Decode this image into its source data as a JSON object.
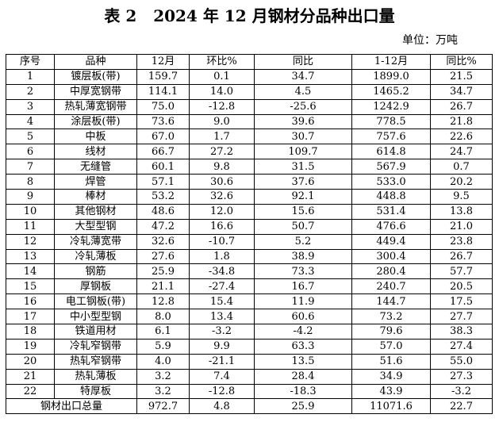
{
  "header": {
    "title": "表 2   2024 年 12 月钢材分品种出口量",
    "unit": "单位：万吨"
  },
  "table": {
    "columns": [
      "序号",
      "品种",
      "12月",
      "环比%",
      "同比",
      "1-12月",
      "同比%"
    ],
    "rows": [
      [
        "1",
        "镀层板(带)",
        "159.7",
        "0.1",
        "34.7",
        "1899.0",
        "21.5"
      ],
      [
        "2",
        "中厚宽钢带",
        "114.1",
        "14.0",
        "4.5",
        "1465.2",
        "34.7"
      ],
      [
        "3",
        "热轧薄宽钢带",
        "75.0",
        "-12.8",
        "-25.6",
        "1242.9",
        "26.7"
      ],
      [
        "4",
        "涂层板(带)",
        "73.6",
        "9.0",
        "39.6",
        "778.5",
        "21.8"
      ],
      [
        "5",
        "中板",
        "67.0",
        "1.7",
        "30.7",
        "757.6",
        "22.6"
      ],
      [
        "6",
        "线材",
        "66.7",
        "27.2",
        "109.7",
        "614.8",
        "24.7"
      ],
      [
        "7",
        "无缝管",
        "60.1",
        "9.8",
        "31.5",
        "567.9",
        "0.7"
      ],
      [
        "8",
        "焊管",
        "57.1",
        "30.6",
        "37.6",
        "533.0",
        "20.2"
      ],
      [
        "9",
        "棒材",
        "53.2",
        "32.6",
        "92.1",
        "448.8",
        "9.5"
      ],
      [
        "10",
        "其他钢材",
        "48.6",
        "12.0",
        "15.6",
        "531.4",
        "13.8"
      ],
      [
        "11",
        "大型型钢",
        "47.2",
        "16.6",
        "50.7",
        "476.6",
        "21.0"
      ],
      [
        "12",
        "冷轧薄宽带",
        "32.6",
        "-10.7",
        "5.2",
        "449.4",
        "23.8"
      ],
      [
        "13",
        "冷轧薄板",
        "27.6",
        "1.8",
        "38.9",
        "300.4",
        "26.7"
      ],
      [
        "14",
        "钢筋",
        "25.9",
        "-34.8",
        "73.3",
        "280.4",
        "57.7"
      ],
      [
        "15",
        "厚钢板",
        "21.1",
        "-27.4",
        "16.7",
        "240.7",
        "20.5"
      ],
      [
        "16",
        "电工钢板(带)",
        "12.8",
        "15.4",
        "11.9",
        "144.7",
        "17.5"
      ],
      [
        "17",
        "中小型型钢",
        "8.0",
        "13.4",
        "60.6",
        "73.2",
        "27.7"
      ],
      [
        "18",
        "铁道用材",
        "6.1",
        "-3.2",
        "-4.2",
        "79.6",
        "38.3"
      ],
      [
        "19",
        "冷轧窄钢带",
        "5.9",
        "9.9",
        "63.3",
        "57.0",
        "27.4"
      ],
      [
        "20",
        "热轧窄钢带",
        "4.0",
        "-21.1",
        "13.5",
        "51.6",
        "55.0"
      ],
      [
        "21",
        "热轧薄板",
        "3.2",
        "7.4",
        "28.4",
        "34.9",
        "27.3"
      ],
      [
        "22",
        "特厚板",
        "3.2",
        "-12.8",
        "-18.3",
        "43.9",
        "-3.2"
      ],
      [
        "钢材出口总量",
        "",
        "972.7",
        "4.8",
        "25.9",
        "11071.6",
        "22.7"
      ]
    ]
  }
}
